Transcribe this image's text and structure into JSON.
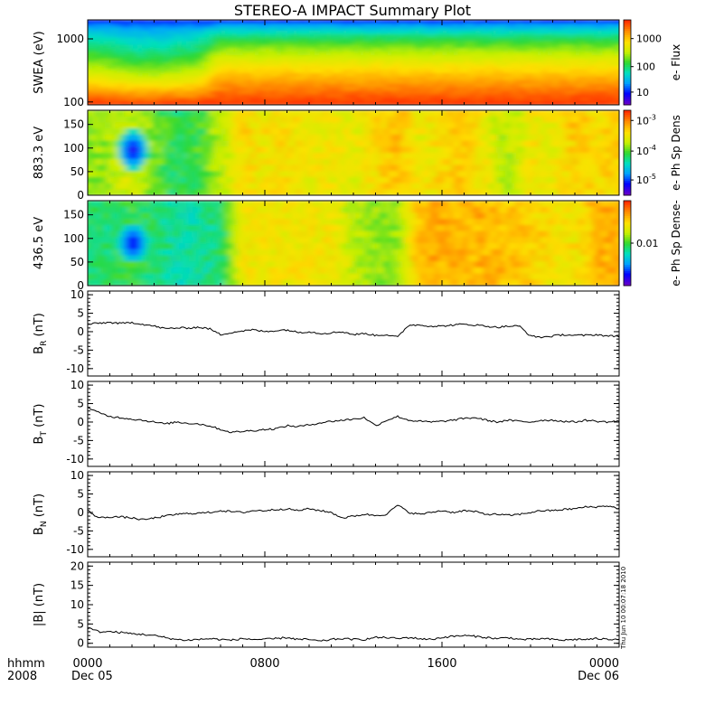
{
  "title": "STEREO-A IMPACT Summary Plot",
  "footer": {
    "time_label": "hhmm",
    "year_label": "2008",
    "start_date": "Dec 05",
    "end_date": "Dec 06",
    "x_ticks": [
      "0000",
      "0800",
      "1600",
      "0000"
    ]
  },
  "timestamp_note": "Thu Jun 10 00:07:18 2010",
  "colors": {
    "line": "#000000",
    "spectrogram_palette": [
      "#6a00c8",
      "#0000ff",
      "#00a0ff",
      "#00e0c0",
      "#30d830",
      "#c8f000",
      "#ffe000",
      "#ff9000",
      "#ff3000"
    ]
  },
  "chart_data": [
    {
      "type": "heatmap",
      "ylabel": "SWEA (eV)",
      "yscale": "log",
      "ylim": [
        90,
        2000
      ],
      "y_ticks": [
        "1000",
        "100"
      ],
      "colorbar": {
        "label": "e- Flux",
        "ticks": [
          "1000",
          "100",
          "10"
        ]
      },
      "x_hours": [
        0,
        1,
        2,
        3,
        4,
        5,
        6,
        7,
        8,
        9,
        10,
        11,
        12,
        13,
        14,
        15,
        16,
        17,
        18,
        19,
        20,
        21,
        22,
        23,
        24
      ],
      "feature_level": [
        0.55,
        0.5,
        0.4,
        0.4,
        0.45,
        0.5,
        0.8,
        0.8,
        0.8,
        0.8,
        0.8,
        0.8,
        0.8,
        0.8,
        0.8,
        0.8,
        0.8,
        0.8,
        0.8,
        0.8,
        0.8,
        0.8,
        0.8,
        0.8,
        0.8
      ]
    },
    {
      "type": "heatmap",
      "ylabel": "883.3 eV",
      "ylim": [
        0,
        180
      ],
      "y_ticks": [
        "150",
        "100",
        "50",
        "0"
      ],
      "colorbar": {
        "label": "e- Ph Sp Dens",
        "ticks": [
          "10^-3",
          "10^-4",
          "10^-5"
        ]
      },
      "x_hours": [
        0,
        1,
        2,
        3,
        4,
        5,
        6,
        7,
        8,
        9,
        10,
        11,
        12,
        13,
        14,
        15,
        16,
        17,
        18,
        19,
        20,
        21,
        22,
        23,
        24
      ],
      "level": [
        0.55,
        0.6,
        0.65,
        0.55,
        0.45,
        0.5,
        0.62,
        0.75,
        0.72,
        0.75,
        0.7,
        0.72,
        0.68,
        0.75,
        0.8,
        0.7,
        0.75,
        0.8,
        0.7,
        0.6,
        0.72,
        0.7,
        0.78,
        0.75,
        0.78
      ],
      "blob": {
        "hour": 2.05,
        "pitch_angle": 95
      }
    },
    {
      "type": "heatmap",
      "ylabel": "436.5 eV",
      "ylim": [
        0,
        180
      ],
      "y_ticks": [
        "150",
        "100",
        "50",
        "0"
      ],
      "colorbar": {
        "label": "e- Ph Sp Dense-",
        "ticks": [
          "0.01"
        ]
      },
      "x_hours": [
        0,
        1,
        2,
        3,
        4,
        5,
        6,
        7,
        8,
        9,
        10,
        11,
        12,
        13,
        14,
        15,
        16,
        17,
        18,
        19,
        20,
        21,
        22,
        23,
        24
      ],
      "level": [
        0.45,
        0.45,
        0.5,
        0.45,
        0.4,
        0.4,
        0.45,
        0.72,
        0.72,
        0.72,
        0.72,
        0.72,
        0.62,
        0.58,
        0.58,
        0.82,
        0.82,
        0.8,
        0.82,
        0.8,
        0.78,
        0.72,
        0.72,
        0.82,
        0.82
      ],
      "blob": {
        "hour": 2.05,
        "pitch_angle": 90
      }
    },
    {
      "type": "line",
      "ylabel": "B_R (nT)",
      "ylim": [
        -12,
        11
      ],
      "y_ticks": [
        10,
        5,
        0,
        -5,
        -10
      ],
      "x_hours": [
        0,
        0.5,
        1,
        1.5,
        2,
        2.5,
        3,
        3.5,
        4,
        4.5,
        5,
        5.5,
        6,
        6.5,
        7,
        7.5,
        8,
        8.5,
        9,
        9.5,
        10,
        10.5,
        11,
        11.5,
        12,
        12.5,
        13,
        13.5,
        14,
        14.5,
        15,
        15.5,
        16,
        16.5,
        17,
        17.5,
        18,
        18.5,
        19,
        19.5,
        20,
        20.5,
        21,
        21.5,
        22,
        22.5,
        23,
        23.5,
        24
      ],
      "values": [
        2.0,
        2.3,
        2.5,
        2.2,
        2.5,
        2.0,
        1.5,
        0.8,
        1.0,
        1.0,
        1.2,
        0.8,
        -0.8,
        -0.2,
        0.2,
        0.5,
        0.0,
        0.3,
        0.5,
        -0.2,
        0.0,
        -0.5,
        -0.3,
        0.0,
        -0.8,
        -0.5,
        -1.0,
        -0.8,
        -1.5,
        1.8,
        1.8,
        1.5,
        1.5,
        1.8,
        2.0,
        1.8,
        1.5,
        1.2,
        1.5,
        1.5,
        -1.2,
        -1.5,
        -1.2,
        -0.8,
        -1.0,
        -1.0,
        -0.8,
        -1.2,
        -1.2
      ]
    },
    {
      "type": "line",
      "ylabel": "B_T (nT)",
      "ylim": [
        -12,
        11
      ],
      "y_ticks": [
        10,
        5,
        0,
        -5,
        -10
      ],
      "x_hours": [
        0,
        0.5,
        1,
        1.5,
        2,
        2.5,
        3,
        3.5,
        4,
        4.5,
        5,
        5.5,
        6,
        6.5,
        7,
        7.5,
        8,
        8.5,
        9,
        9.5,
        10,
        10.5,
        11,
        11.5,
        12,
        12.5,
        13,
        13.5,
        14,
        14.5,
        15,
        15.5,
        16,
        16.5,
        17,
        17.5,
        18,
        18.5,
        19,
        19.5,
        20,
        20.5,
        21,
        21.5,
        22,
        22.5,
        23,
        23.5,
        24
      ],
      "values": [
        4.0,
        2.5,
        1.5,
        1.2,
        0.8,
        0.5,
        0.0,
        -0.5,
        0.0,
        -0.3,
        -0.5,
        -1.0,
        -2.0,
        -2.8,
        -2.5,
        -2.3,
        -2.0,
        -1.8,
        -1.0,
        -1.2,
        -0.8,
        -0.2,
        0.2,
        0.5,
        0.8,
        1.2,
        -1.0,
        0.5,
        1.5,
        0.5,
        0.2,
        0.0,
        0.2,
        0.5,
        1.0,
        1.2,
        0.5,
        0.0,
        0.5,
        0.2,
        0.0,
        0.5,
        0.5,
        0.2,
        0.0,
        0.5,
        0.2,
        0.0,
        0.3
      ]
    },
    {
      "type": "line",
      "ylabel": "B_N (nT)",
      "ylim": [
        -12,
        11
      ],
      "y_ticks": [
        10,
        5,
        0,
        -5,
        -10
      ],
      "x_hours": [
        0,
        0.5,
        1,
        1.5,
        2,
        2.5,
        3,
        3.5,
        4,
        4.5,
        5,
        5.5,
        6,
        6.5,
        7,
        7.5,
        8,
        8.5,
        9,
        9.5,
        10,
        10.5,
        11,
        11.5,
        12,
        12.5,
        13,
        13.5,
        14,
        14.5,
        15,
        15.5,
        16,
        16.5,
        17,
        17.5,
        18,
        18.5,
        19,
        19.5,
        20,
        20.5,
        21,
        21.5,
        22,
        22.5,
        23,
        23.5,
        24
      ],
      "values": [
        0.5,
        -1.5,
        -1.2,
        -1.2,
        -1.5,
        -2.0,
        -1.5,
        -1.0,
        -0.5,
        -0.3,
        -0.2,
        0.0,
        0.5,
        0.2,
        0.0,
        0.5,
        0.5,
        0.8,
        1.0,
        0.5,
        1.0,
        0.5,
        0.0,
        -1.5,
        -1.0,
        -0.5,
        -0.8,
        -0.5,
        2.0,
        0.0,
        -0.5,
        0.0,
        0.5,
        0.0,
        0.5,
        0.2,
        -0.5,
        -0.5,
        -0.8,
        -0.5,
        0.0,
        0.5,
        0.5,
        0.8,
        1.0,
        1.5,
        1.5,
        1.8,
        1.0
      ]
    },
    {
      "type": "line",
      "ylabel": "|B| (nT)",
      "ylim": [
        -1,
        21
      ],
      "y_ticks": [
        20,
        15,
        10,
        5,
        0
      ],
      "x_hours": [
        0,
        0.5,
        1,
        1.5,
        2,
        2.5,
        3,
        3.5,
        4,
        4.5,
        5,
        5.5,
        6,
        6.5,
        7,
        7.5,
        8,
        8.5,
        9,
        9.5,
        10,
        10.5,
        11,
        11.5,
        12,
        12.5,
        13,
        13.5,
        14,
        14.5,
        15,
        15.5,
        16,
        16.5,
        17,
        17.5,
        18,
        18.5,
        19,
        19.5,
        20,
        20.5,
        21,
        21.5,
        22,
        22.5,
        23,
        23.5,
        24
      ],
      "values": [
        4.0,
        3.0,
        3.0,
        2.8,
        2.5,
        2.3,
        2.0,
        1.5,
        1.0,
        0.8,
        1.0,
        1.2,
        1.0,
        0.8,
        1.2,
        1.0,
        1.0,
        1.2,
        1.5,
        1.0,
        1.0,
        0.5,
        1.0,
        1.2,
        1.0,
        1.0,
        1.5,
        1.5,
        1.2,
        1.5,
        1.2,
        1.0,
        1.5,
        1.8,
        2.0,
        1.8,
        1.5,
        1.2,
        1.5,
        1.0,
        1.0,
        1.2,
        1.0,
        0.8,
        1.0,
        1.0,
        1.2,
        1.0,
        1.2
      ]
    }
  ]
}
